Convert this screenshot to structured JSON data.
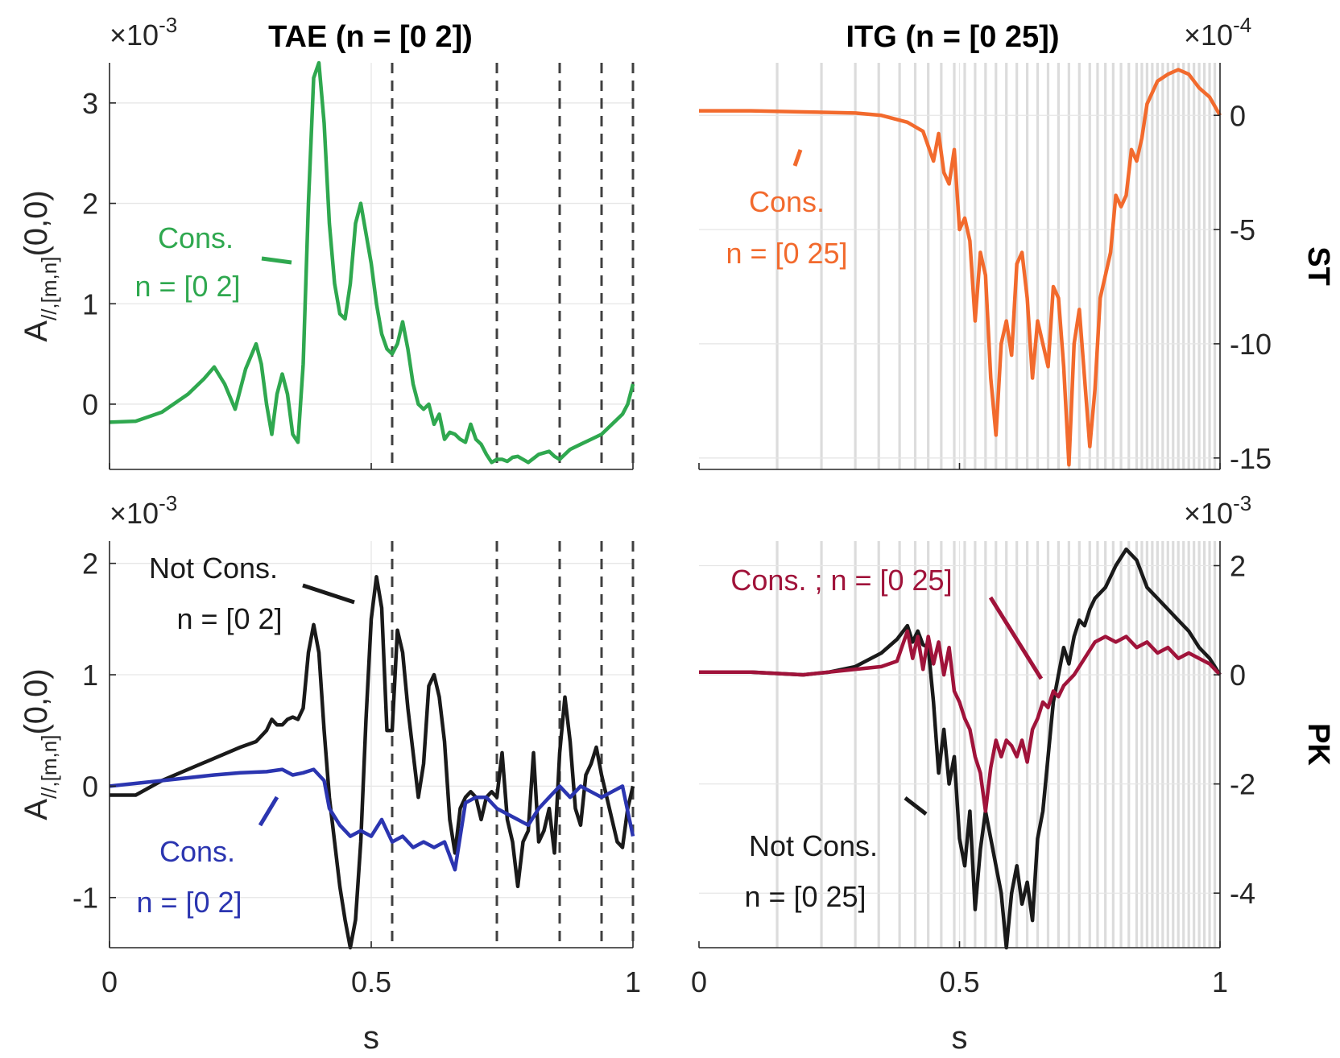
{
  "chart_data": [
    {
      "id": "tae_top",
      "type": "line",
      "title": "TAE (n = [0 2])",
      "xlabel": "",
      "ylabel": "A_{//,[m,n]}(0,0)",
      "exponent": "-3",
      "xlim": [
        0,
        1
      ],
      "ylim": [
        -0.65,
        3.4
      ],
      "xticks": [
        "0",
        "0.5",
        "1"
      ],
      "yticks": [
        {
          "value": 0,
          "label": "0"
        },
        {
          "value": 1,
          "label": "1"
        },
        {
          "value": 2,
          "label": "2"
        },
        {
          "value": 3,
          "label": "3"
        }
      ],
      "dashed_lines_x": [
        0.54,
        0.74,
        0.86,
        0.94,
        1.0
      ],
      "annotations": [
        {
          "text": "Cons.",
          "color": "#2fa84f"
        },
        {
          "text": "n = [0 2]",
          "color": "#2fa84f"
        }
      ],
      "series": [
        {
          "name": "Cons. n = [0 2]",
          "color": "#2fa84f",
          "x": [
            0.0,
            0.05,
            0.1,
            0.15,
            0.18,
            0.2,
            0.22,
            0.24,
            0.26,
            0.28,
            0.29,
            0.3,
            0.31,
            0.32,
            0.33,
            0.34,
            0.35,
            0.36,
            0.37,
            0.38,
            0.39,
            0.4,
            0.41,
            0.42,
            0.43,
            0.44,
            0.45,
            0.46,
            0.47,
            0.48,
            0.49,
            0.5,
            0.51,
            0.52,
            0.53,
            0.54,
            0.55,
            0.56,
            0.57,
            0.58,
            0.59,
            0.6,
            0.61,
            0.62,
            0.63,
            0.64,
            0.65,
            0.66,
            0.67,
            0.68,
            0.69,
            0.7,
            0.71,
            0.72,
            0.73,
            0.74,
            0.75,
            0.76,
            0.77,
            0.78,
            0.8,
            0.82,
            0.84,
            0.85,
            0.86,
            0.87,
            0.88,
            0.9,
            0.92,
            0.94,
            0.96,
            0.98,
            0.99,
            1.0
          ],
          "y": [
            -0.18,
            -0.17,
            -0.08,
            0.1,
            0.25,
            0.37,
            0.2,
            -0.05,
            0.35,
            0.6,
            0.4,
            0.0,
            -0.3,
            0.1,
            0.3,
            0.1,
            -0.3,
            -0.38,
            0.4,
            2.0,
            3.25,
            3.4,
            2.8,
            1.8,
            1.2,
            0.9,
            0.85,
            1.2,
            1.8,
            2.0,
            1.7,
            1.4,
            1.0,
            0.7,
            0.55,
            0.5,
            0.6,
            0.82,
            0.55,
            0.2,
            0.0,
            -0.05,
            0.0,
            -0.2,
            -0.1,
            -0.35,
            -0.28,
            -0.3,
            -0.35,
            -0.38,
            -0.2,
            -0.35,
            -0.4,
            -0.5,
            -0.58,
            -0.55,
            -0.55,
            -0.57,
            -0.53,
            -0.52,
            -0.58,
            -0.5,
            -0.47,
            -0.52,
            -0.55,
            -0.5,
            -0.45,
            -0.4,
            -0.35,
            -0.3,
            -0.2,
            -0.1,
            0.0,
            0.2
          ]
        }
      ]
    },
    {
      "id": "itg_top",
      "type": "line",
      "title": "ITG (n = [0 25])",
      "xlabel": "",
      "ylabel": "ST",
      "exponent": "-4",
      "yaxis_location": "right",
      "xlim": [
        0,
        1
      ],
      "ylim": [
        -15.5,
        2.3
      ],
      "xticks": [
        "0",
        "0.5",
        "1"
      ],
      "yticks": [
        {
          "value": 0,
          "label": "0"
        },
        {
          "value": -5,
          "label": "-5"
        },
        {
          "value": -10,
          "label": "-10"
        },
        {
          "value": -15,
          "label": "-15"
        }
      ],
      "annotations": [
        {
          "text": "Cons.",
          "color": "#f26a2d"
        },
        {
          "text": "n = [0 25]",
          "color": "#f26a2d"
        }
      ],
      "series": [
        {
          "name": "Cons. n = [0 25]",
          "color": "#f26a2d",
          "x": [
            0.0,
            0.1,
            0.2,
            0.3,
            0.35,
            0.4,
            0.43,
            0.45,
            0.46,
            0.47,
            0.48,
            0.49,
            0.5,
            0.51,
            0.52,
            0.53,
            0.54,
            0.55,
            0.56,
            0.57,
            0.58,
            0.59,
            0.6,
            0.61,
            0.62,
            0.63,
            0.64,
            0.65,
            0.66,
            0.67,
            0.68,
            0.69,
            0.7,
            0.71,
            0.72,
            0.73,
            0.74,
            0.75,
            0.76,
            0.77,
            0.78,
            0.79,
            0.8,
            0.81,
            0.82,
            0.83,
            0.84,
            0.85,
            0.86,
            0.87,
            0.88,
            0.9,
            0.92,
            0.94,
            0.96,
            0.98,
            1.0
          ],
          "y": [
            0.2,
            0.2,
            0.15,
            0.1,
            0.0,
            -0.3,
            -0.7,
            -2.0,
            -0.8,
            -2.5,
            -3.0,
            -1.5,
            -5.0,
            -4.5,
            -5.5,
            -9.0,
            -6.0,
            -7.0,
            -11.5,
            -14.0,
            -10.0,
            -9.0,
            -10.5,
            -6.5,
            -6.0,
            -8.0,
            -11.5,
            -9.0,
            -10.0,
            -11.0,
            -7.5,
            -8.0,
            -11.0,
            -15.3,
            -10.0,
            -8.5,
            -11.5,
            -14.5,
            -12.0,
            -8.0,
            -7.0,
            -6.0,
            -3.5,
            -4.0,
            -3.5,
            -1.5,
            -2.0,
            -1.0,
            0.5,
            1.0,
            1.5,
            1.8,
            2.0,
            1.8,
            1.2,
            0.8,
            0.0
          ]
        }
      ]
    },
    {
      "id": "tae_bottom",
      "type": "line",
      "title": "",
      "xlabel": "s",
      "ylabel": "A_{//,[m,n]}(0,0)",
      "exponent": "-3",
      "xlim": [
        0,
        1
      ],
      "ylim": [
        -1.45,
        2.2
      ],
      "xticks": [
        "0",
        "0.5",
        "1"
      ],
      "yticks": [
        {
          "value": -1,
          "label": "-1"
        },
        {
          "value": 0,
          "label": "0"
        },
        {
          "value": 1,
          "label": "1"
        },
        {
          "value": 2,
          "label": "2"
        }
      ],
      "dashed_lines_x": [
        0.54,
        0.74,
        0.86,
        0.94,
        1.0
      ],
      "annotations": [
        {
          "text": "Not Cons.",
          "color": "#1a1a1a"
        },
        {
          "text": "n = [0 2]",
          "color": "#1a1a1a"
        },
        {
          "text": "Cons.",
          "color": "#2b35b0"
        },
        {
          "text": "n = [0 2]",
          "color": "#2b35b0"
        }
      ],
      "series": [
        {
          "name": "Not Cons. n = [0 2]",
          "color": "#1a1a1a",
          "x": [
            0.0,
            0.05,
            0.1,
            0.15,
            0.2,
            0.25,
            0.28,
            0.3,
            0.31,
            0.32,
            0.33,
            0.34,
            0.35,
            0.36,
            0.37,
            0.38,
            0.39,
            0.4,
            0.41,
            0.42,
            0.43,
            0.44,
            0.45,
            0.46,
            0.47,
            0.48,
            0.49,
            0.5,
            0.51,
            0.52,
            0.53,
            0.54,
            0.55,
            0.56,
            0.57,
            0.58,
            0.59,
            0.6,
            0.61,
            0.62,
            0.63,
            0.64,
            0.65,
            0.66,
            0.67,
            0.68,
            0.69,
            0.7,
            0.71,
            0.72,
            0.73,
            0.74,
            0.75,
            0.76,
            0.77,
            0.78,
            0.79,
            0.8,
            0.81,
            0.82,
            0.83,
            0.84,
            0.85,
            0.86,
            0.87,
            0.88,
            0.89,
            0.9,
            0.91,
            0.92,
            0.93,
            0.94,
            0.95,
            0.96,
            0.97,
            0.98,
            0.99,
            1.0
          ],
          "y": [
            -0.08,
            -0.08,
            0.05,
            0.15,
            0.25,
            0.35,
            0.4,
            0.5,
            0.6,
            0.55,
            0.55,
            0.6,
            0.62,
            0.6,
            0.7,
            1.2,
            1.45,
            1.2,
            0.5,
            -0.1,
            -0.5,
            -0.9,
            -1.2,
            -1.45,
            -1.2,
            -0.5,
            0.6,
            1.5,
            1.88,
            1.6,
            0.5,
            0.5,
            1.4,
            1.2,
            0.7,
            0.3,
            -0.1,
            0.2,
            0.9,
            1.0,
            0.8,
            0.4,
            -0.3,
            -0.6,
            -0.2,
            -0.1,
            -0.05,
            -0.1,
            -0.3,
            -0.1,
            -0.05,
            -0.1,
            0.3,
            -0.3,
            -0.5,
            -0.9,
            -0.5,
            -0.4,
            0.3,
            -0.5,
            -0.4,
            -0.2,
            -0.6,
            0.3,
            0.8,
            0.4,
            -0.2,
            -0.35,
            0.1,
            0.2,
            0.35,
            0.1,
            -0.1,
            -0.3,
            -0.5,
            -0.55,
            -0.2,
            0.0
          ]
        },
        {
          "name": "Cons. n = [0 2]",
          "color": "#2b35b0",
          "x": [
            0.0,
            0.1,
            0.2,
            0.25,
            0.3,
            0.33,
            0.35,
            0.37,
            0.39,
            0.41,
            0.42,
            0.44,
            0.46,
            0.48,
            0.5,
            0.52,
            0.54,
            0.56,
            0.58,
            0.6,
            0.62,
            0.64,
            0.66,
            0.68,
            0.7,
            0.72,
            0.74,
            0.76,
            0.78,
            0.8,
            0.82,
            0.84,
            0.86,
            0.88,
            0.9,
            0.92,
            0.94,
            0.96,
            0.98,
            1.0
          ],
          "y": [
            0.0,
            0.05,
            0.1,
            0.12,
            0.13,
            0.15,
            0.1,
            0.12,
            0.15,
            0.05,
            -0.2,
            -0.35,
            -0.45,
            -0.4,
            -0.45,
            -0.3,
            -0.5,
            -0.45,
            -0.55,
            -0.5,
            -0.55,
            -0.5,
            -0.75,
            -0.15,
            -0.1,
            -0.1,
            -0.2,
            -0.25,
            -0.3,
            -0.35,
            -0.2,
            -0.1,
            0.0,
            -0.1,
            0.0,
            -0.05,
            -0.1,
            -0.05,
            0.0,
            -0.45
          ]
        }
      ]
    },
    {
      "id": "itg_bottom",
      "type": "line",
      "title": "",
      "xlabel": "s",
      "ylabel": "PK",
      "exponent": "-3",
      "yaxis_location": "right",
      "xlim": [
        0,
        1
      ],
      "ylim": [
        -5.0,
        2.45
      ],
      "xticks": [
        "0",
        "0.5",
        "1"
      ],
      "yticks": [
        {
          "value": -4,
          "label": "-4"
        },
        {
          "value": -2,
          "label": "-2"
        },
        {
          "value": 0,
          "label": "0"
        },
        {
          "value": 2,
          "label": "2"
        }
      ],
      "annotations": [
        {
          "text": "Cons. ; n = [0 25]",
          "color": "#a0133a"
        },
        {
          "text": "Not Cons.",
          "color": "#1a1a1a"
        },
        {
          "text": "n = [0 25]",
          "color": "#1a1a1a"
        }
      ],
      "series": [
        {
          "name": "Not Cons. n = [0 25]",
          "color": "#1a1a1a",
          "x": [
            0.0,
            0.1,
            0.2,
            0.25,
            0.3,
            0.35,
            0.38,
            0.4,
            0.41,
            0.42,
            0.43,
            0.44,
            0.45,
            0.46,
            0.47,
            0.48,
            0.49,
            0.5,
            0.51,
            0.52,
            0.53,
            0.54,
            0.55,
            0.56,
            0.57,
            0.58,
            0.59,
            0.6,
            0.61,
            0.62,
            0.63,
            0.64,
            0.65,
            0.66,
            0.67,
            0.68,
            0.69,
            0.7,
            0.71,
            0.72,
            0.73,
            0.74,
            0.75,
            0.76,
            0.78,
            0.8,
            0.82,
            0.84,
            0.86,
            0.88,
            0.9,
            0.92,
            0.94,
            0.96,
            0.98,
            1.0
          ],
          "y": [
            0.05,
            0.05,
            0.0,
            0.05,
            0.15,
            0.4,
            0.65,
            0.9,
            0.6,
            0.8,
            0.55,
            0.5,
            -0.5,
            -1.8,
            -1.0,
            -2.0,
            -1.5,
            -3.0,
            -3.5,
            -2.5,
            -4.3,
            -3.2,
            -2.5,
            -3.0,
            -3.5,
            -4.0,
            -5.0,
            -4.0,
            -3.5,
            -4.2,
            -3.8,
            -4.5,
            -3.0,
            -2.5,
            -1.5,
            -0.5,
            0.0,
            0.5,
            0.2,
            0.7,
            1.0,
            0.9,
            1.2,
            1.4,
            1.6,
            2.0,
            2.3,
            2.1,
            1.6,
            1.4,
            1.2,
            1.0,
            0.8,
            0.5,
            0.3,
            0.0
          ]
        },
        {
          "name": "Cons. ; n = [0 25]",
          "color": "#a0133a",
          "x": [
            0.0,
            0.1,
            0.2,
            0.3,
            0.35,
            0.38,
            0.4,
            0.41,
            0.42,
            0.43,
            0.44,
            0.45,
            0.46,
            0.47,
            0.48,
            0.49,
            0.5,
            0.51,
            0.52,
            0.53,
            0.54,
            0.55,
            0.56,
            0.57,
            0.58,
            0.59,
            0.6,
            0.61,
            0.62,
            0.63,
            0.64,
            0.65,
            0.66,
            0.67,
            0.68,
            0.69,
            0.7,
            0.72,
            0.74,
            0.76,
            0.78,
            0.8,
            0.82,
            0.84,
            0.86,
            0.88,
            0.9,
            0.92,
            0.94,
            0.96,
            0.98,
            1.0
          ],
          "y": [
            0.05,
            0.05,
            0.0,
            0.1,
            0.15,
            0.25,
            0.8,
            0.3,
            0.7,
            0.1,
            0.7,
            0.2,
            0.6,
            0.0,
            0.5,
            -0.3,
            -0.5,
            -0.8,
            -1.0,
            -1.5,
            -1.8,
            -2.5,
            -1.7,
            -1.2,
            -1.5,
            -1.2,
            -1.3,
            -1.5,
            -1.2,
            -1.6,
            -1.0,
            -0.8,
            -0.5,
            -0.6,
            -0.3,
            -0.4,
            -0.2,
            0.0,
            0.3,
            0.6,
            0.7,
            0.6,
            0.7,
            0.5,
            0.6,
            0.4,
            0.5,
            0.3,
            0.4,
            0.3,
            0.2,
            0.0
          ]
        }
      ]
    }
  ]
}
